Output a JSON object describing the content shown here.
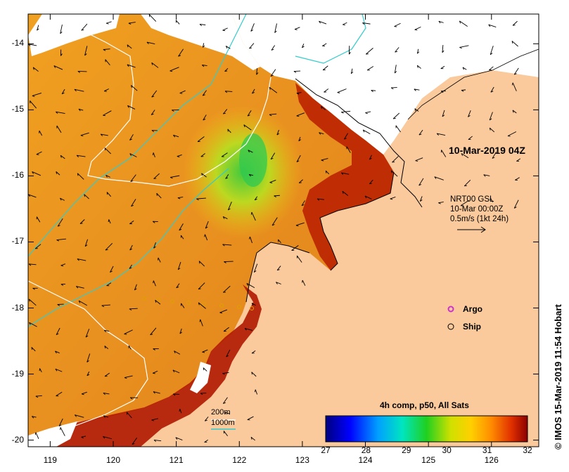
{
  "map": {
    "lat_ticks": [
      "-14",
      "-15",
      "-16",
      "-17",
      "-18",
      "-19",
      "-20"
    ],
    "lon_ticks": [
      "119",
      "120",
      "121",
      "122",
      "123",
      "124",
      "125",
      "126"
    ],
    "lon_range": [
      118.65,
      126.75
    ],
    "lat_range": [
      -13.55,
      -20.1
    ]
  },
  "date_label": "10-Mar-2019 04Z",
  "current_legend": {
    "source": "NRT00 GSL",
    "time": "10-Mar 00:00Z",
    "scale": "0.5m/s (1kt 24h)"
  },
  "markers": {
    "argo": "Argo",
    "ship": "Ship"
  },
  "isobaths": {
    "line1": "200m",
    "line2": "1000m"
  },
  "colorbar": {
    "title": "4h comp, p50, All Sats",
    "ticks": [
      "27",
      "28",
      "29",
      "30",
      "31",
      "32"
    ],
    "min": 27,
    "max": 32
  },
  "credit": "© IMOS 15-Mar-2019 11:54 Hobart",
  "colors": {
    "land": "#fac99c",
    "isobath_200": "#ffffff",
    "isobath_1000": "#33cccc",
    "argo": "#cc33cc"
  }
}
